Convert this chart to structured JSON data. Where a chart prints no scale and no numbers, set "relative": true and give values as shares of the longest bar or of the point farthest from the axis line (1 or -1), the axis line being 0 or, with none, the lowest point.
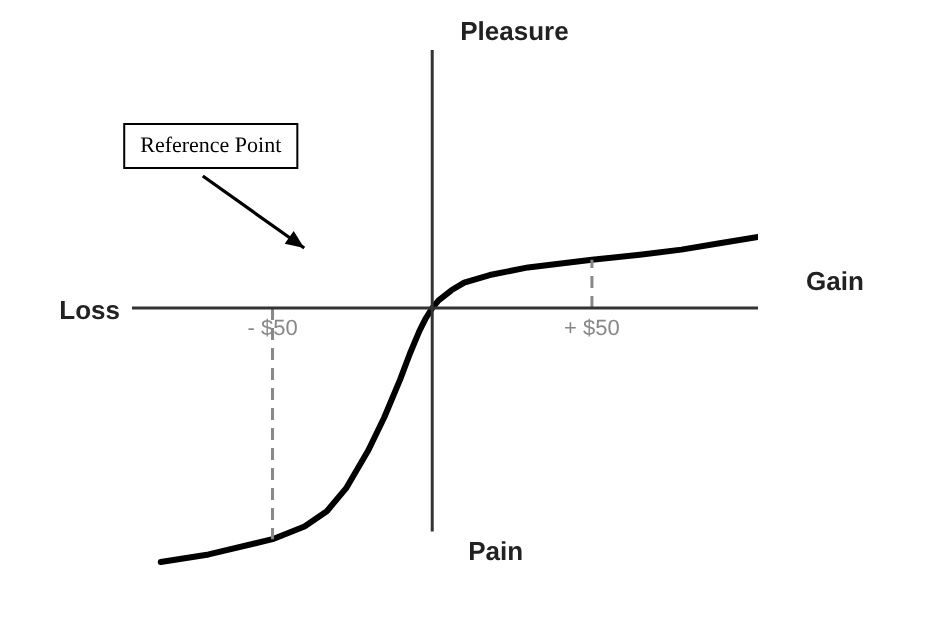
{
  "chart_data": {
    "type": "line",
    "relative": true,
    "xlim": [
      -94,
      102
    ],
    "xticks": [
      {
        "value": -50,
        "label": "- $50"
      },
      {
        "value": 50,
        "label": "+ $50"
      }
    ],
    "xlabel": "Gain",
    "annotations": [
      "Loss",
      "Pain",
      "Reference Point",
      "Pleasure"
    ],
    "x": [
      -85,
      -70,
      -50,
      -40,
      -33,
      -27,
      -20,
      -15,
      -10,
      -7,
      -4,
      -2,
      0,
      2,
      6,
      10,
      18,
      30,
      50,
      65,
      78,
      90,
      102
    ],
    "series": [
      {
        "color": "#000000",
        "values": [
          -1,
          -0.97,
          -0.91,
          -0.86,
          -0.8,
          -0.71,
          -0.56,
          -0.43,
          -0.28,
          -0.18,
          -0.09,
          -0.04,
          0,
          0.03,
          0.07,
          0.1,
          0.13,
          0.16,
          0.19,
          0.21,
          0.23,
          0.255,
          0.28
        ]
      }
    ],
    "ref_lines": [
      {
        "axis": "x",
        "value": -50,
        "color": "#888888",
        "line_style": "dashed"
      },
      {
        "axis": "x",
        "value": 50,
        "color": "#888888",
        "line_style": "dashed"
      }
    ],
    "marker": "none",
    "line_style": "solid",
    "legend": false
  }
}
